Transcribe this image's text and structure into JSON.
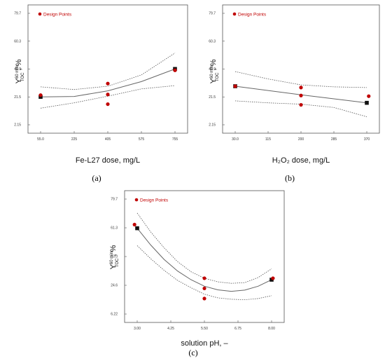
{
  "chart_data": [
    {
      "type": "scatter",
      "legend": "Design Points",
      "caption": "(a)",
      "xlabel": "Fe-L27 dose, mg/L",
      "ylabel_main": "Y",
      "ylabel_sup": "60 min",
      "ylabel_sub": "TOC",
      "ylabel_unit": ", %",
      "x_ticks": [
        "55.0",
        "225",
        "405",
        "575",
        "755"
      ],
      "y_ticks": [
        "79.7",
        "60.3",
        "40.9",
        "21.5",
        "2.15"
      ],
      "xlim": [
        55,
        755
      ],
      "ylim": [
        2.15,
        79.7
      ],
      "design_points": [
        [
          55,
          21.3
        ],
        [
          405,
          30.0
        ],
        [
          405,
          21.8
        ],
        [
          405,
          14.5
        ],
        [
          755,
          40.0
        ]
      ],
      "center_points": [
        [
          55,
          20.0
        ],
        [
          755,
          41.0
        ]
      ],
      "fit": [
        [
          55,
          20.0
        ],
        [
          230,
          20.3
        ],
        [
          405,
          24.5
        ],
        [
          580,
          31.5
        ],
        [
          755,
          41.0
        ]
      ],
      "ci_upper": [
        [
          55,
          27.5
        ],
        [
          230,
          25.5
        ],
        [
          405,
          28.0
        ],
        [
          580,
          36.5
        ],
        [
          755,
          53.0
        ]
      ],
      "ci_lower": [
        [
          55,
          11.5
        ],
        [
          230,
          15.5
        ],
        [
          405,
          20.5
        ],
        [
          580,
          26.0
        ],
        [
          755,
          28.5
        ]
      ]
    },
    {
      "type": "scatter",
      "legend": "Design Points",
      "caption": "(b)",
      "xlabel": "H₂O₂ dose, mg/L",
      "ylabel_main": "Y",
      "ylabel_sup": "60 min",
      "ylabel_sub": "TOC",
      "ylabel_unit": ", %",
      "x_ticks": [
        "30.0",
        "115",
        "200",
        "285",
        "370"
      ],
      "y_ticks": [
        "79.7",
        "60.3",
        "40.9",
        "21.5",
        "2.15"
      ],
      "xlim": [
        30,
        370
      ],
      "ylim": [
        2.15,
        79.7
      ],
      "design_points": [
        [
          30,
          28.0
        ],
        [
          200,
          27.0
        ],
        [
          200,
          21.0
        ],
        [
          200,
          14.0
        ],
        [
          375,
          20.5
        ]
      ],
      "center_points": [
        [
          30,
          28.0
        ],
        [
          370,
          15.5
        ]
      ],
      "fit": [
        [
          30,
          28.0
        ],
        [
          200,
          21.5
        ],
        [
          370,
          15.5
        ]
      ],
      "ci_upper": [
        [
          30,
          39.0
        ],
        [
          115,
          33.5
        ],
        [
          200,
          29.0
        ],
        [
          285,
          27.5
        ],
        [
          370,
          27.0
        ]
      ],
      "ci_lower": [
        [
          30,
          17.0
        ],
        [
          115,
          15.5
        ],
        [
          200,
          14.5
        ],
        [
          285,
          12.0
        ],
        [
          370,
          5.0
        ]
      ]
    },
    {
      "type": "scatter",
      "legend": "Design Points",
      "caption": "(c)",
      "xlabel": "solution pH, –",
      "ylabel_main": "Y",
      "ylabel_sup": "60 min",
      "ylabel_sub": "TOC",
      "ylabel_unit": ", %",
      "x_ticks": [
        "3.00",
        "4.25",
        "5.50",
        "6.75",
        "8.00"
      ],
      "y_ticks": [
        "79.7",
        "61.3",
        "43.0",
        "24.6",
        "6.22"
      ],
      "xlim": [
        3.0,
        8.0
      ],
      "ylim": [
        6.22,
        79.7
      ],
      "design_points": [
        [
          2.9,
          65.0
        ],
        [
          5.5,
          28.0
        ],
        [
          5.5,
          21.0
        ],
        [
          5.5,
          14.0
        ],
        [
          8.05,
          28.0
        ]
      ],
      "center_points": [
        [
          3.0,
          62.5
        ],
        [
          8.0,
          27.0
        ]
      ],
      "fit": [
        [
          3.0,
          62.5
        ],
        [
          3.5,
          51.0
        ],
        [
          4.0,
          41.0
        ],
        [
          4.5,
          33.0
        ],
        [
          5.0,
          27.0
        ],
        [
          5.5,
          22.5
        ],
        [
          6.0,
          20.0
        ],
        [
          6.5,
          19.0
        ],
        [
          7.0,
          19.8
        ],
        [
          7.5,
          22.5
        ],
        [
          8.0,
          27.0
        ]
      ],
      "ci_upper": [
        [
          3.0,
          73.0
        ],
        [
          3.5,
          60.0
        ],
        [
          4.0,
          49.0
        ],
        [
          4.5,
          39.5
        ],
        [
          5.0,
          32.5
        ],
        [
          5.5,
          28.0
        ],
        [
          6.0,
          25.5
        ],
        [
          6.5,
          24.5
        ],
        [
          7.0,
          25.0
        ],
        [
          7.5,
          28.5
        ],
        [
          8.0,
          34.5
        ]
      ],
      "ci_lower": [
        [
          3.0,
          50.5
        ],
        [
          3.5,
          41.5
        ],
        [
          4.0,
          33.5
        ],
        [
          4.5,
          26.5
        ],
        [
          5.0,
          21.5
        ],
        [
          5.5,
          17.0
        ],
        [
          6.0,
          14.5
        ],
        [
          6.5,
          13.5
        ],
        [
          7.0,
          13.2
        ],
        [
          7.5,
          14.0
        ],
        [
          8.0,
          16.0
        ]
      ]
    }
  ]
}
